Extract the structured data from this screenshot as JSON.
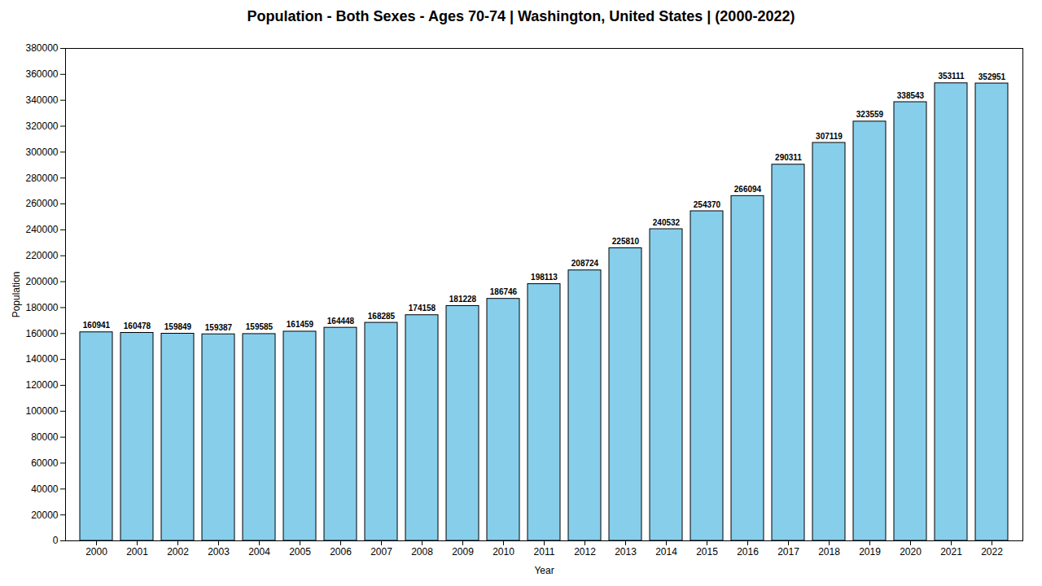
{
  "chart_data": {
    "type": "bar",
    "title": "Population - Both Sexes - Ages 70-74 | Washington, United States |  (2000-2022)",
    "xlabel": "Year",
    "ylabel": "Population",
    "categories": [
      "2000",
      "2001",
      "2002",
      "2003",
      "2004",
      "2005",
      "2006",
      "2007",
      "2008",
      "2009",
      "2010",
      "2011",
      "2012",
      "2013",
      "2014",
      "2015",
      "2016",
      "2017",
      "2018",
      "2019",
      "2020",
      "2021",
      "2022"
    ],
    "values": [
      160941,
      160478,
      159849,
      159387,
      159585,
      161459,
      164448,
      168285,
      174158,
      181228,
      186746,
      198113,
      208724,
      225810,
      240532,
      254370,
      266094,
      290311,
      307119,
      323559,
      338543,
      353111,
      352951
    ],
    "color": "#87CEEB",
    "ylim": [
      0,
      380000
    ],
    "yticks": [
      0,
      20000,
      40000,
      60000,
      80000,
      100000,
      120000,
      140000,
      160000,
      180000,
      200000,
      220000,
      240000,
      260000,
      280000,
      300000,
      320000,
      340000,
      360000,
      380000
    ],
    "grid": false,
    "data_labels": true
  }
}
